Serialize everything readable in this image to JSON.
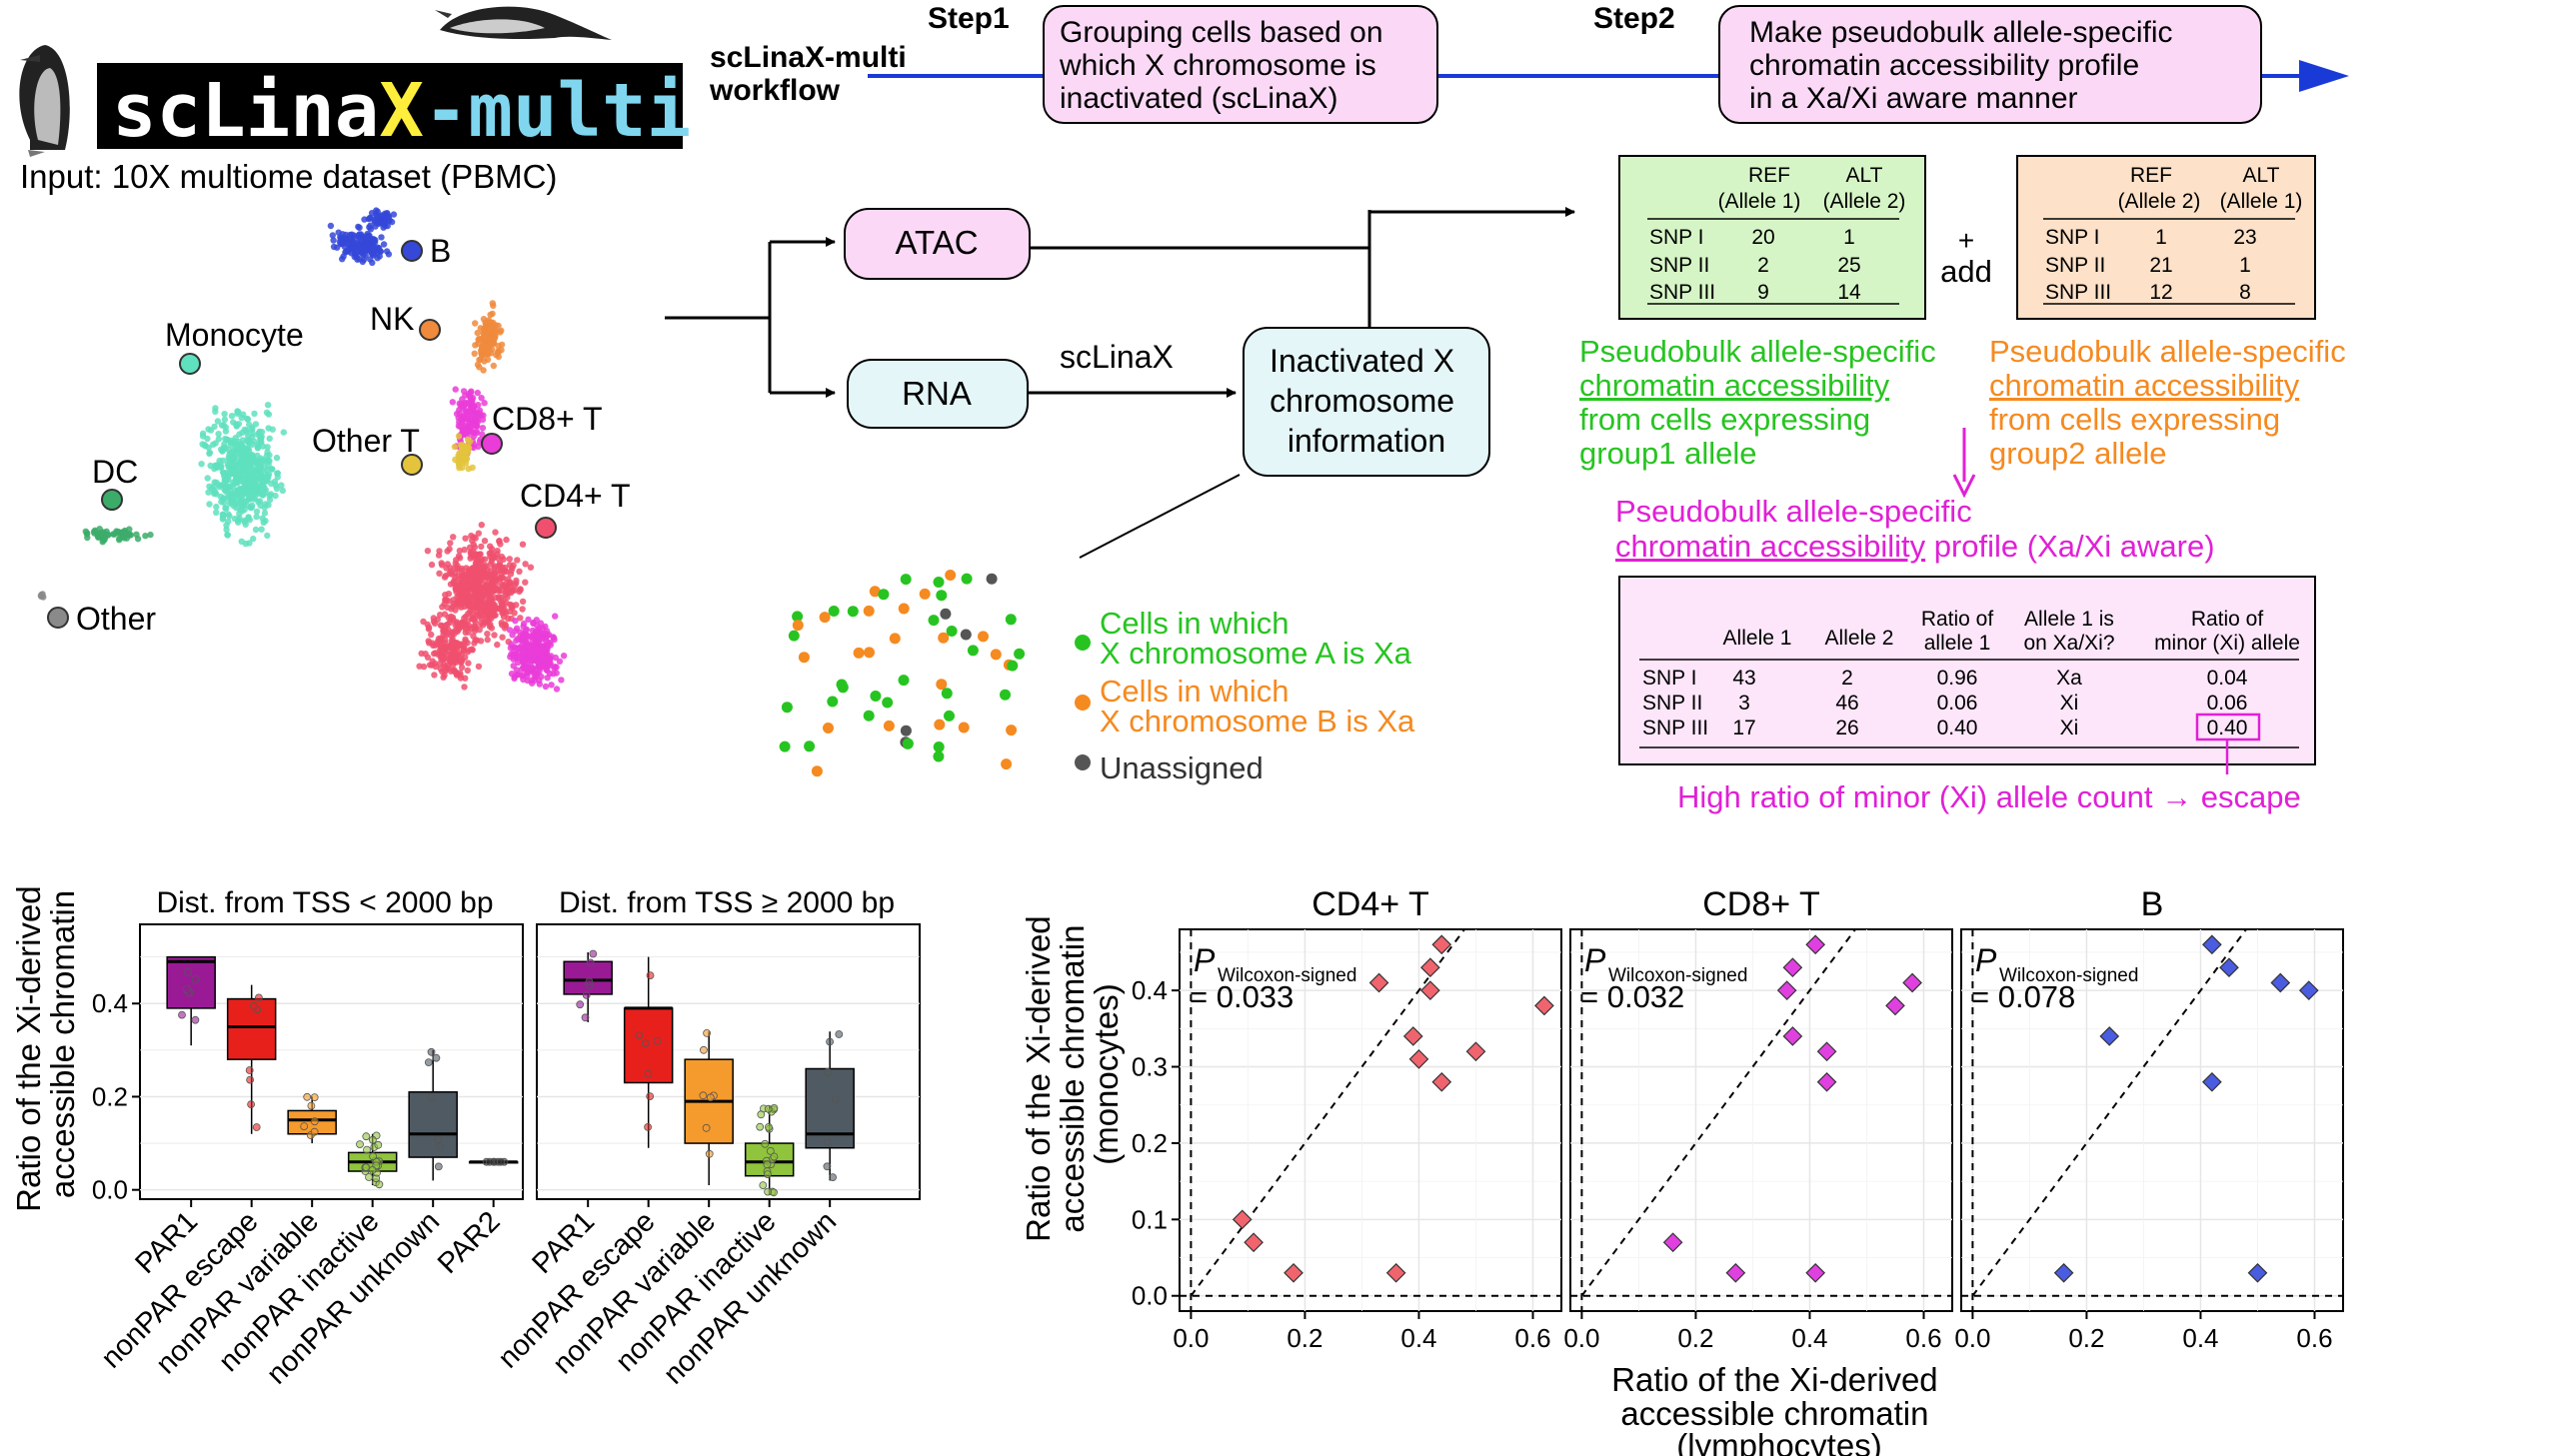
{
  "workflow": {
    "logo_text_a": "scLina",
    "logo_text_x": "X",
    "logo_text_b": "-multi",
    "input_label": "Input: 10X multiome dataset (PBMC)",
    "workflow_title_1": "scLinaX-multi",
    "workflow_title_2": "workflow",
    "step1_label": "Step1",
    "step1_lines": [
      "Grouping cells based on",
      "which X chromosome is",
      "inactivated (scLinaX)"
    ],
    "step2_label": "Step2",
    "step2_lines": [
      "Make pseudobulk allele-specific",
      "chromatin accessibility profile",
      "in a Xa/Xi aware manner"
    ],
    "atac_label": "ATAC",
    "rna_label": "RNA",
    "sclinax_label": "scLinaX",
    "inactivated_lines": [
      "Inactivated X",
      "chromosome",
      "information"
    ],
    "add_plus": "+",
    "add_label": "add"
  },
  "umap": {
    "clusters": [
      "B",
      "NK",
      "Monocyte",
      "CD8+ T",
      "Other T",
      "DC",
      "CD4+ T",
      "Other"
    ],
    "colors": {
      "B": "#3548d8",
      "NK": "#f08a3c",
      "Monocyte": "#5fe0be",
      "CD8+ T": "#ea3cd8",
      "Other T": "#e3c43c",
      "DC": "#3cab6a",
      "CD4+ T": "#f0506e",
      "Other": "#8a8a8a"
    }
  },
  "table1": {
    "col1": [
      "REF",
      "(Allele 1)"
    ],
    "col2": [
      "ALT",
      "(Allele 2)"
    ],
    "rows": [
      [
        "SNP I",
        "20",
        "1"
      ],
      [
        "SNP II",
        "2",
        "25"
      ],
      [
        "SNP III",
        "9",
        "14"
      ]
    ],
    "caption": [
      "Pseudobulk allele-specific",
      "chromatin accessibility",
      "from cells expressing",
      "group1 allele"
    ]
  },
  "table2": {
    "col1": [
      "REF",
      "(Allele 2)"
    ],
    "col2": [
      "ALT",
      "(Allele 1)"
    ],
    "rows": [
      [
        "SNP I",
        "1",
        "23"
      ],
      [
        "SNP II",
        "21",
        "1"
      ],
      [
        "SNP III",
        "12",
        "8"
      ]
    ],
    "caption": [
      "Pseudobulk allele-specific",
      "chromatin accessibility",
      "from cells expressing",
      "group2 allele"
    ]
  },
  "table3": {
    "title_l1": "Pseudobulk allele-specific",
    "title_l2a": "chromatin accessibility",
    "title_l2b": " profile (Xa/Xi aware)",
    "headers": [
      [
        "Allele 1"
      ],
      [
        "Allele 2"
      ],
      [
        "Ratio of",
        "allele 1"
      ],
      [
        "Allele 1 is",
        "on Xa/Xi?"
      ],
      [
        "Ratio of",
        "minor (Xi) allele"
      ]
    ],
    "rows": [
      [
        "SNP I",
        "43",
        "2",
        "0.96",
        "Xa",
        "0.04"
      ],
      [
        "SNP II",
        "3",
        "46",
        "0.06",
        "Xi",
        "0.06"
      ],
      [
        "SNP III",
        "17",
        "26",
        "0.40",
        "Xi",
        "0.40"
      ]
    ],
    "note": "High ratio of minor (Xi) allele count → escape"
  },
  "cells_legend": {
    "green": [
      "Cells in which",
      "X chromosome A is Xa"
    ],
    "orange": [
      "Cells in which",
      "X chromosome B is Xa"
    ],
    "gray": "Unassigned"
  },
  "chart_data": [
    {
      "type": "box",
      "title": "Dist. from TSS < 2000 bp",
      "ylabel": "Ratio of the Xi-derived accessible chromatin",
      "ylim": [
        -0.02,
        0.57
      ],
      "yticks": [
        0.0,
        0.2,
        0.4
      ],
      "categories": [
        "PAR1",
        "nonPAR escape",
        "nonPAR variable",
        "nonPAR inactive",
        "nonPAR unknown",
        "PAR2"
      ],
      "colors": [
        "#9a1a96",
        "#e8201c",
        "#f59a2c",
        "#8fc43c",
        "#505a62",
        "#303030"
      ],
      "boxes": [
        {
          "q1": 0.39,
          "median": 0.49,
          "q3": 0.5,
          "lo": 0.31,
          "hi": 0.5
        },
        {
          "q1": 0.28,
          "median": 0.35,
          "q3": 0.41,
          "lo": 0.12,
          "hi": 0.44
        },
        {
          "q1": 0.12,
          "median": 0.15,
          "q3": 0.17,
          "lo": 0.1,
          "hi": 0.2
        },
        {
          "q1": 0.04,
          "median": 0.06,
          "q3": 0.08,
          "lo": 0.01,
          "hi": 0.12
        },
        {
          "q1": 0.07,
          "median": 0.12,
          "q3": 0.21,
          "lo": 0.02,
          "hi": 0.3
        },
        {
          "q1": 0.06,
          "median": 0.06,
          "q3": 0.06,
          "lo": 0.06,
          "hi": 0.06
        }
      ]
    },
    {
      "type": "box",
      "title": "Dist. from TSS ≥ 2000 bp",
      "ylim": [
        -0.02,
        0.57
      ],
      "categories": [
        "PAR1",
        "nonPAR escape",
        "nonPAR variable",
        "nonPAR inactive",
        "nonPAR unknown"
      ],
      "colors": [
        "#9a1a96",
        "#e8201c",
        "#f59a2c",
        "#8fc43c",
        "#505a62"
      ],
      "boxes": [
        {
          "q1": 0.42,
          "median": 0.45,
          "q3": 0.49,
          "lo": 0.36,
          "hi": 0.51
        },
        {
          "q1": 0.23,
          "median": 0.39,
          "q3": 0.39,
          "lo": 0.09,
          "hi": 0.5
        },
        {
          "q1": 0.1,
          "median": 0.19,
          "q3": 0.28,
          "lo": 0.01,
          "hi": 0.34
        },
        {
          "q1": 0.03,
          "median": 0.06,
          "q3": 0.1,
          "lo": -0.01,
          "hi": 0.18
        },
        {
          "q1": 0.09,
          "median": 0.12,
          "q3": 0.26,
          "lo": 0.02,
          "hi": 0.34
        }
      ]
    },
    {
      "type": "scatter",
      "title": "CD4+ T",
      "xlabel": "Ratio of the Xi-derived accessible chromatin (lymphocytes)",
      "ylabel": "Ratio of the Xi-derived accessible chromatin (monocytes)",
      "xlim": [
        -0.02,
        0.65
      ],
      "ylim": [
        -0.02,
        0.48
      ],
      "xticks": [
        0.0,
        0.2,
        0.4,
        0.6
      ],
      "yticks": [
        0.0,
        0.1,
        0.2,
        0.3,
        0.4
      ],
      "stat_label": "P",
      "stat_sub": "Wilcoxon-signed",
      "stat_value": "= 0.033",
      "color": "#f0646e",
      "points": [
        [
          0.44,
          0.46
        ],
        [
          0.42,
          0.43
        ],
        [
          0.33,
          0.41
        ],
        [
          0.42,
          0.4
        ],
        [
          0.62,
          0.38
        ],
        [
          0.39,
          0.34
        ],
        [
          0.5,
          0.32
        ],
        [
          0.4,
          0.31
        ],
        [
          0.44,
          0.28
        ],
        [
          0.09,
          0.1
        ],
        [
          0.11,
          0.07
        ],
        [
          0.18,
          0.03
        ],
        [
          0.36,
          0.03
        ]
      ]
    },
    {
      "type": "scatter",
      "title": "CD8+ T",
      "xlim": [
        -0.02,
        0.65
      ],
      "ylim": [
        -0.02,
        0.48
      ],
      "xticks": [
        0.0,
        0.2,
        0.4,
        0.6
      ],
      "stat_label": "P",
      "stat_sub": "Wilcoxon-signed",
      "stat_value": "= 0.032",
      "color": "#e040e0",
      "points": [
        [
          0.41,
          0.46
        ],
        [
          0.37,
          0.43
        ],
        [
          0.58,
          0.41
        ],
        [
          0.36,
          0.4
        ],
        [
          0.55,
          0.38
        ],
        [
          0.37,
          0.34
        ],
        [
          0.43,
          0.32
        ],
        [
          0.43,
          0.28
        ],
        [
          0.16,
          0.07
        ],
        [
          0.27,
          0.03
        ],
        [
          0.41,
          0.03
        ]
      ]
    },
    {
      "type": "scatter",
      "title": "B",
      "xlim": [
        -0.02,
        0.65
      ],
      "ylim": [
        -0.02,
        0.48
      ],
      "xticks": [
        0.0,
        0.2,
        0.4,
        0.6
      ],
      "stat_label": "P",
      "stat_sub": "Wilcoxon-signed",
      "stat_value": "= 0.078",
      "color": "#4a5ce0",
      "points": [
        [
          0.42,
          0.46
        ],
        [
          0.45,
          0.43
        ],
        [
          0.54,
          0.41
        ],
        [
          0.59,
          0.4
        ],
        [
          0.24,
          0.34
        ],
        [
          0.42,
          0.28
        ],
        [
          0.16,
          0.03
        ],
        [
          0.5,
          0.03
        ]
      ]
    }
  ]
}
